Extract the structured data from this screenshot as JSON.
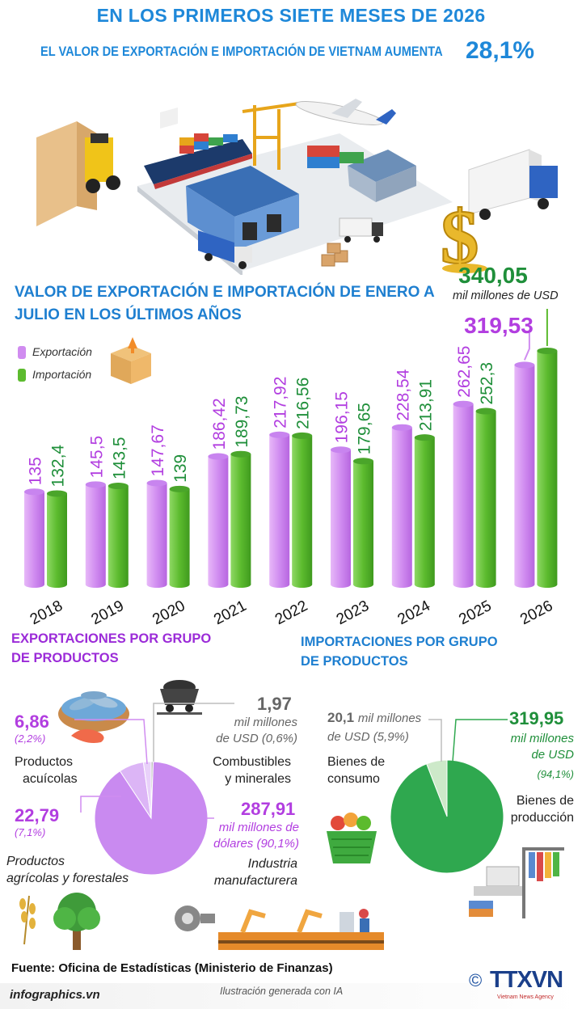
{
  "header": {
    "title": "EN LOS PRIMEROS SIETE MESES DE 2026",
    "subtitle": "EL VALOR DE EXPORTACIÓN E IMPORTACIÓN DE VIETNAM AUMENTA",
    "growth": "28,1%"
  },
  "colors": {
    "export": "#d08cf0",
    "import": "#5cbb2e",
    "title": "#1e88d9",
    "accent_purple": "#b23ee0",
    "accent_green": "#1f8f3a"
  },
  "chart_data": [
    {
      "type": "bar",
      "title": "VALOR DE EXPORTACIÓN E IMPORTACIÓN DE ENERO A JULIO EN LOS ÚLTIMOS AÑOS",
      "categories": [
        "2018",
        "2019",
        "2020",
        "2021",
        "2022",
        "2023",
        "2024",
        "2025",
        "2026"
      ],
      "series": [
        {
          "name": "Exportación",
          "values": [
            135,
            145.5,
            147.67,
            186.42,
            217.92,
            196.15,
            228.54,
            262.65,
            319.53
          ],
          "labels": [
            "135",
            "145,5",
            "147,67",
            "186,42",
            "217,92",
            "196,15",
            "228,54",
            "262,65",
            "319,53"
          ]
        },
        {
          "name": "Importación",
          "values": [
            132.4,
            143.5,
            139,
            189.73,
            216.56,
            179.65,
            213.91,
            252.3,
            340.05
          ],
          "labels": [
            "132,4",
            "143,5",
            "139",
            "189,73",
            "216,56",
            "179,65",
            "213,91",
            "252,3",
            "340,05"
          ]
        }
      ],
      "unit": "mil millones de USD",
      "legend": "top-left"
    },
    {
      "type": "pie",
      "title": "EXPORTACIONES POR GRUPO DE PRODUCTOS",
      "slices": [
        {
          "name": "Industria manufacturera",
          "value": 287.91,
          "percent": 90.1
        },
        {
          "name": "Productos agrícolas y forestales",
          "value": 22.79,
          "percent": 7.1
        },
        {
          "name": "Productos acuícolas",
          "value": 6.86,
          "percent": 2.2
        },
        {
          "name": "Combustibles y minerales",
          "value": 1.97,
          "percent": 0.6
        }
      ]
    },
    {
      "type": "pie",
      "title": "IMPORTACIONES POR GRUPO DE PRODUCTOS",
      "slices": [
        {
          "name": "Bienes de producción",
          "value": 319.95,
          "percent": 94.1
        },
        {
          "name": "Bienes de consumo",
          "value": 20.1,
          "percent": 5.9
        }
      ]
    }
  ],
  "bar_chart_text": {
    "title_line1": "VALOR DE EXPORTACIÓN E IMPORTACIÓN DE ENERO A",
    "title_line2": "JULIO EN LOS ÚLTIMOS AÑOS",
    "legend_export": "Exportación",
    "legend_import": "Importación",
    "unit": "mil millones de USD"
  },
  "export_pie": {
    "title_line1": "EXPORTACIONES POR GRUPO",
    "title_line2": "DE PRODUCTOS",
    "aqua_value": "6,86",
    "aqua_pct": "(2,2%)",
    "aqua_name1": "Productos",
    "aqua_name2": "acuícolas",
    "agri_value": "22,79",
    "agri_pct": "(7,1%)",
    "agri_name1": "Productos",
    "agri_name2": "agrícolas y forestales",
    "fuel_value": "1,97",
    "fuel_unit1": "mil millones",
    "fuel_unit2": "de USD (0,6%)",
    "fuel_name1": "Combustibles",
    "fuel_name2": "y minerales",
    "manu_value": "287,91",
    "manu_unit1": "mil millones de",
    "manu_unit2": "dólares (90,1%)",
    "manu_name1": "Industria",
    "manu_name2": "manufacturera"
  },
  "import_pie": {
    "title_line1": "IMPORTACIONES POR GRUPO",
    "title_line2": "DE PRODUCTOS",
    "cons_value": "20,1",
    "cons_unit1": "mil millones",
    "cons_unit2": "de USD (5,9%)",
    "cons_name1": "Bienes de",
    "cons_name2": "consumo",
    "prod_value": "319,95",
    "prod_unit1": "mil millones",
    "prod_unit2": "de USD",
    "prod_pct": "(94,1%)",
    "prod_name1": "Bienes de",
    "prod_name2": "producción"
  },
  "footer": {
    "source": "Fuente: Oficina de Estadísticas (Ministerio de Finanzas)",
    "site": "infographics.vn",
    "ia": "Ilustración generada con  IA",
    "copyright": "©",
    "logo_text": "TTXVN",
    "logo_sub": "Vietnam News Agency"
  }
}
